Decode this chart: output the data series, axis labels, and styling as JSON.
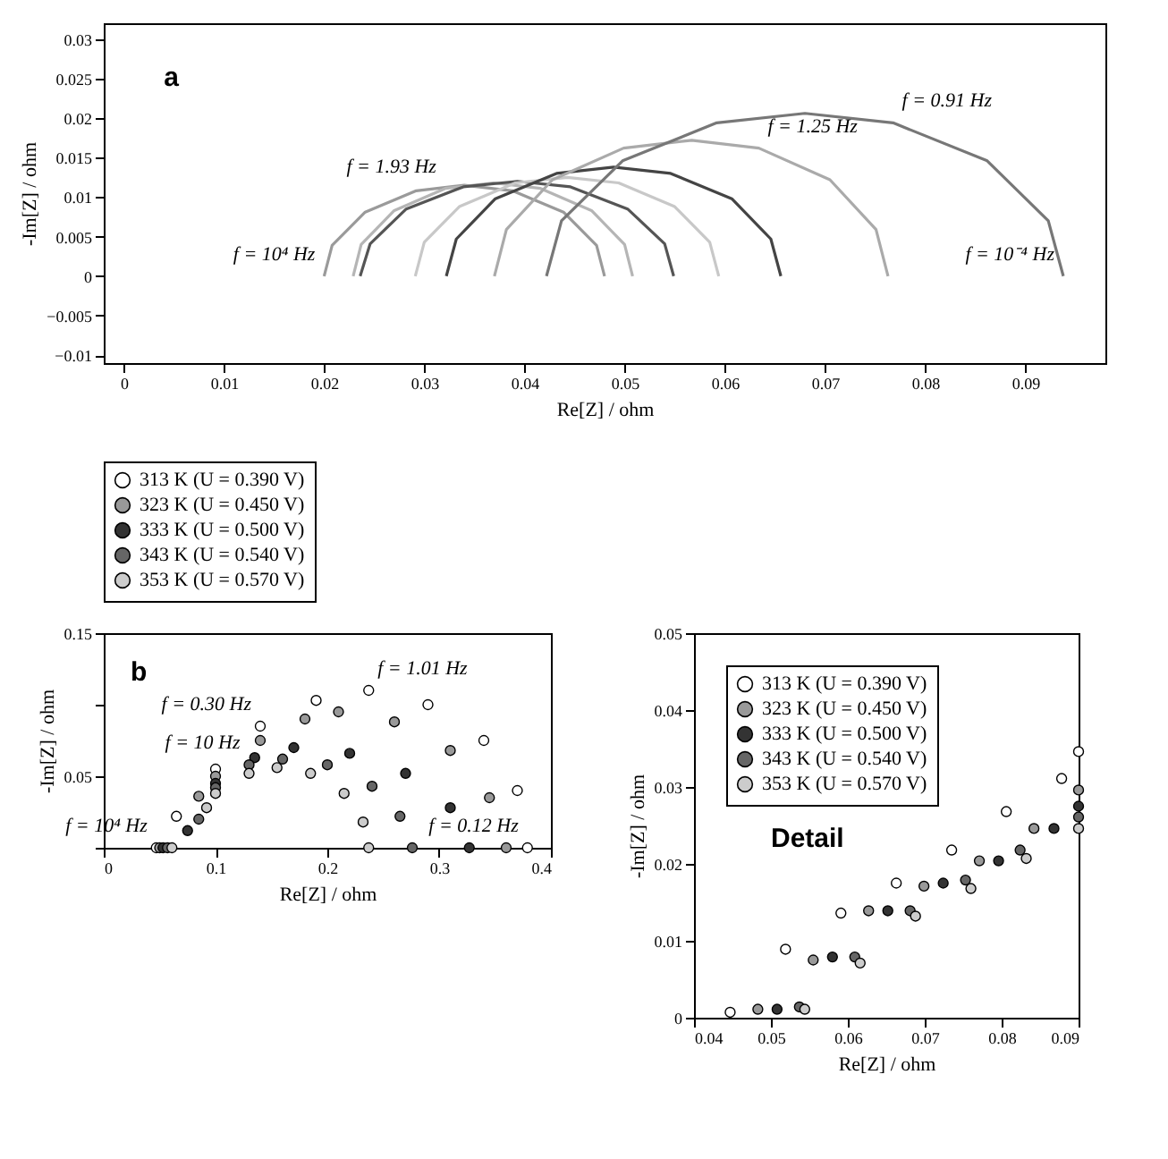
{
  "chart_data": [
    {
      "type": "line",
      "xlabel": "Re[Z] / ohm",
      "ylabel": "-Im[Z] / ohm",
      "xlim": [
        -0.002,
        0.098
      ],
      "ylim": [
        -0.011,
        0.032
      ],
      "xticks": [
        0,
        0.01,
        0.02,
        0.03,
        0.04,
        0.05,
        0.06,
        0.07,
        0.08,
        0.09
      ],
      "yticks": [
        -0.01,
        -0.005,
        0,
        0.005,
        0.01,
        0.015,
        0.02,
        0.025,
        0.03
      ],
      "grid": false,
      "series": [
        {
          "color": "#9a9a9a",
          "x": [
            0.02,
            0.0208,
            0.0241,
            0.0292,
            0.034,
            0.0388,
            0.0439,
            0.0472,
            0.048
          ],
          "values": [
            0,
            0.0039,
            0.0081,
            0.0108,
            0.0115,
            0.0108,
            0.0081,
            0.0039,
            0
          ]
        },
        {
          "color": "#b5b5b5",
          "x": [
            0.0229,
            0.0237,
            0.027,
            0.0321,
            0.0369,
            0.0416,
            0.0467,
            0.05,
            0.0508
          ],
          "values": [
            0,
            0.004,
            0.0083,
            0.0111,
            0.0118,
            0.0111,
            0.0083,
            0.004,
            0
          ]
        },
        {
          "color": "#555555",
          "x": [
            0.0236,
            0.0246,
            0.0282,
            0.0339,
            0.0393,
            0.0446,
            0.0503,
            0.054,
            0.0549
          ],
          "values": [
            0,
            0.0041,
            0.0085,
            0.0113,
            0.012,
            0.0113,
            0.0085,
            0.0041,
            0
          ]
        },
        {
          "color": "#c8c8c8",
          "x": [
            0.0291,
            0.03,
            0.0335,
            0.0391,
            0.0443,
            0.0494,
            0.055,
            0.0585,
            0.0594
          ],
          "values": [
            0,
            0.0043,
            0.0088,
            0.0118,
            0.0125,
            0.0118,
            0.0088,
            0.0043,
            0
          ]
        },
        {
          "color": "#444444",
          "x": [
            0.0322,
            0.0332,
            0.0371,
            0.0432,
            0.0489,
            0.0546,
            0.0607,
            0.0646,
            0.0656
          ],
          "values": [
            0,
            0.0047,
            0.0098,
            0.013,
            0.0138,
            0.013,
            0.0098,
            0.0047,
            0
          ]
        },
        {
          "color": "#aaaaaa",
          "x": [
            0.037,
            0.0382,
            0.0428,
            0.0499,
            0.0567,
            0.0634,
            0.0705,
            0.0751,
            0.0763
          ],
          "values": [
            0,
            0.0059,
            0.0122,
            0.0162,
            0.0172,
            0.0162,
            0.0122,
            0.0059,
            0
          ]
        },
        {
          "color": "#777777",
          "x": [
            0.0422,
            0.0437,
            0.0498,
            0.0592,
            0.068,
            0.0768,
            0.0862,
            0.0923,
            0.0938
          ],
          "values": [
            0,
            0.007,
            0.0146,
            0.0194,
            0.0206,
            0.0194,
            0.0146,
            0.007,
            0
          ]
        }
      ],
      "annotations": [
        "a",
        {
          "text": "f = 10⁴ Hz",
          "x": 0.02,
          "y": 0
        },
        {
          "text": "f = 1.93 Hz",
          "x": 0.0321,
          "y": 0.0111
        },
        {
          "text": "f = 1.25 Hz",
          "x": 0.0634,
          "y": 0.0162
        },
        {
          "text": "f = 0.91 Hz",
          "x": 0.0768,
          "y": 0.0194
        },
        {
          "text": "f = 10⁻⁴ Hz",
          "x": 0.0938,
          "y": 0
        }
      ]
    },
    {
      "type": "scatter",
      "xlabel": "Re[Z] / ohm",
      "ylabel": "-Im[Z] / ohm",
      "xlim": [
        0,
        0.4
      ],
      "ylim": [
        0,
        0.15
      ],
      "xticks": [
        0,
        0.1,
        0.2,
        0.3,
        0.4
      ],
      "yticks": [
        {
          "value": 0,
          "label": null
        },
        0.05,
        {
          "value": 0.1,
          "label": null
        },
        0.15
      ],
      "grid": false,
      "legend": "top",
      "marker": "circle",
      "series": [
        {
          "name": "313 K (U = 0.390 V)",
          "color": "#ffffff",
          "x": [
            0.047,
            0.065,
            0.1,
            0.14,
            0.19,
            0.237,
            0.29,
            0.34,
            0.37,
            0.379
          ],
          "values": [
            0,
            0.022,
            0.055,
            0.085,
            0.103,
            0.11,
            0.1,
            0.075,
            0.04,
            0
          ]
        },
        {
          "name": "323 K (U = 0.450 V)",
          "color": "#999999",
          "x": [
            0.05,
            0.085,
            0.1,
            0.14,
            0.18,
            0.21,
            0.26,
            0.31,
            0.345,
            0.36
          ],
          "values": [
            0,
            0.036,
            0.05,
            0.075,
            0.09,
            0.095,
            0.088,
            0.068,
            0.035,
            0
          ]
        },
        {
          "name": "333 K (U = 0.500 V)",
          "color": "#333333",
          "x": [
            0.053,
            0.075,
            0.1,
            0.135,
            0.17,
            0.22,
            0.27,
            0.31,
            0.327
          ],
          "values": [
            0,
            0.012,
            0.045,
            0.063,
            0.07,
            0.066,
            0.052,
            0.028,
            0
          ]
        },
        {
          "name": "343 K (U = 0.540 V)",
          "color": "#666666",
          "x": [
            0.057,
            0.085,
            0.1,
            0.13,
            0.16,
            0.2,
            0.24,
            0.265,
            0.276
          ],
          "values": [
            0,
            0.02,
            0.042,
            0.058,
            0.062,
            0.058,
            0.043,
            0.022,
            0
          ]
        },
        {
          "name": "353 K (U = 0.570 V)",
          "color": "#cccccc",
          "x": [
            0.061,
            0.092,
            0.1,
            0.13,
            0.155,
            0.185,
            0.215,
            0.232,
            0.237
          ],
          "values": [
            0,
            0.028,
            0.038,
            0.052,
            0.056,
            0.052,
            0.038,
            0.018,
            0
          ]
        }
      ],
      "annotations": [
        "b",
        {
          "text": "f = 1.01 Hz",
          "x": 0.237,
          "y": 0.11
        },
        {
          "text": "f = 0.30 Hz",
          "x": 0.14,
          "y": 0.085
        },
        {
          "text": "f = 10 Hz",
          "x": 0.13,
          "y": 0.058
        },
        {
          "text": "f = 10⁴ Hz",
          "x": 0.047,
          "y": 0
        },
        {
          "text": "f = 0.12 Hz",
          "x": 0.379,
          "y": 0
        }
      ]
    },
    {
      "type": "scatter",
      "xlabel": "Re[Z] / ohm",
      "ylabel": "-Im[Z] / ohm",
      "xlim": [
        0.04,
        0.09
      ],
      "ylim": [
        0,
        0.05
      ],
      "xticks": [
        0.04,
        0.05,
        0.06,
        0.07,
        0.08,
        0.09
      ],
      "yticks": [
        0,
        0.01,
        0.02,
        0.03,
        0.04,
        0.05
      ],
      "grid": false,
      "legend": "top left",
      "marker": "circle",
      "series": [
        {
          "name": "313 K (U = 0.390 V)",
          "color": "#ffffff",
          "x": [
            0.0447,
            0.0519,
            0.0591,
            0.0663,
            0.0735,
            0.0806,
            0.0878,
            0.09
          ],
          "values": [
            0.0007,
            0.0089,
            0.0136,
            0.0175,
            0.0218,
            0.0268,
            0.0311,
            0.0346
          ]
        },
        {
          "name": "323 K (U = 0.450 V)",
          "color": "#999999",
          "x": [
            0.0483,
            0.0555,
            0.0627,
            0.0699,
            0.0771,
            0.0842,
            0.09
          ],
          "values": [
            0.0011,
            0.0075,
            0.0139,
            0.0171,
            0.0204,
            0.0246,
            0.0296
          ]
        },
        {
          "name": "333 K (U = 0.500 V)",
          "color": "#333333",
          "x": [
            0.0508,
            0.058,
            0.0652,
            0.0724,
            0.0796,
            0.0868,
            0.09
          ],
          "values": [
            0.0011,
            0.0079,
            0.0139,
            0.0175,
            0.0204,
            0.0246,
            0.0275
          ]
        },
        {
          "name": "343 K (U = 0.540 V)",
          "color": "#666666",
          "x": [
            0.0537,
            0.0609,
            0.0681,
            0.0753,
            0.0824,
            0.09
          ],
          "values": [
            0.0014,
            0.0079,
            0.0139,
            0.0179,
            0.0218,
            0.0261
          ]
        },
        {
          "name": "353 K (U = 0.570 V)",
          "color": "#cccccc",
          "x": [
            0.0544,
            0.0616,
            0.0688,
            0.076,
            0.0832,
            0.09
          ],
          "values": [
            0.0011,
            0.0071,
            0.0132,
            0.0168,
            0.0207,
            0.0246
          ]
        }
      ],
      "annotations": [
        "Detail"
      ]
    }
  ]
}
